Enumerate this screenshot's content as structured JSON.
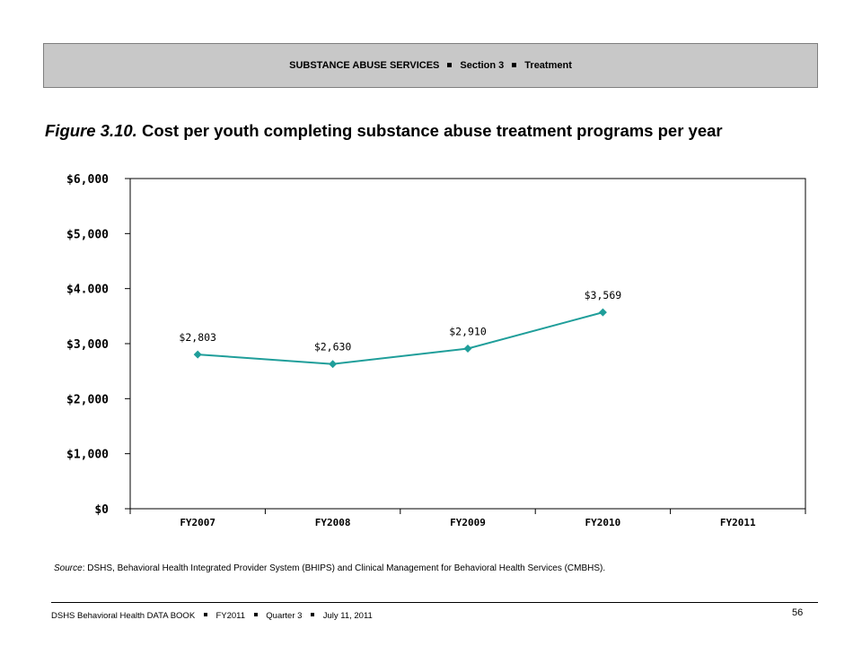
{
  "header": {
    "section": "SUBSTANCE ABUSE SERVICES",
    "section_num": "Section 3",
    "topic": "Treatment"
  },
  "figure": {
    "number": "Figure 3.10.",
    "title": "Cost per youth completing substance abuse treatment programs per year"
  },
  "chart_data": {
    "type": "line",
    "categories": [
      "FY2007",
      "FY2008",
      "FY2009",
      "FY2010",
      "FY2011"
    ],
    "series": [
      {
        "values": [
          2803,
          2630,
          2910,
          3569,
          null
        ],
        "labels": [
          "$2,803",
          "$2,630",
          "$2,910",
          "$3,569",
          null
        ]
      }
    ],
    "yticks": [
      0,
      1000,
      2000,
      3000,
      4000,
      5000,
      6000
    ],
    "ytick_labels": [
      "$0",
      "$1,000",
      "$2,000",
      "$3,000",
      "$4.000",
      "$5,000",
      "$6,000"
    ],
    "ylim": [
      0,
      6000
    ],
    "grid": false,
    "line_color": "#1f9e9a",
    "marker": "diamond"
  },
  "source": {
    "label": "Source",
    "text": ": DSHS, Behavioral Health Integrated Provider System (BHIPS) and Clinical Management for Behavioral Health Services (CMBHS)."
  },
  "footer": {
    "book": "DSHS Behavioral Health DATA BOOK",
    "fy": "FY2011",
    "quarter": "Quarter 3",
    "date": "July 11, 2011",
    "page": "56"
  }
}
